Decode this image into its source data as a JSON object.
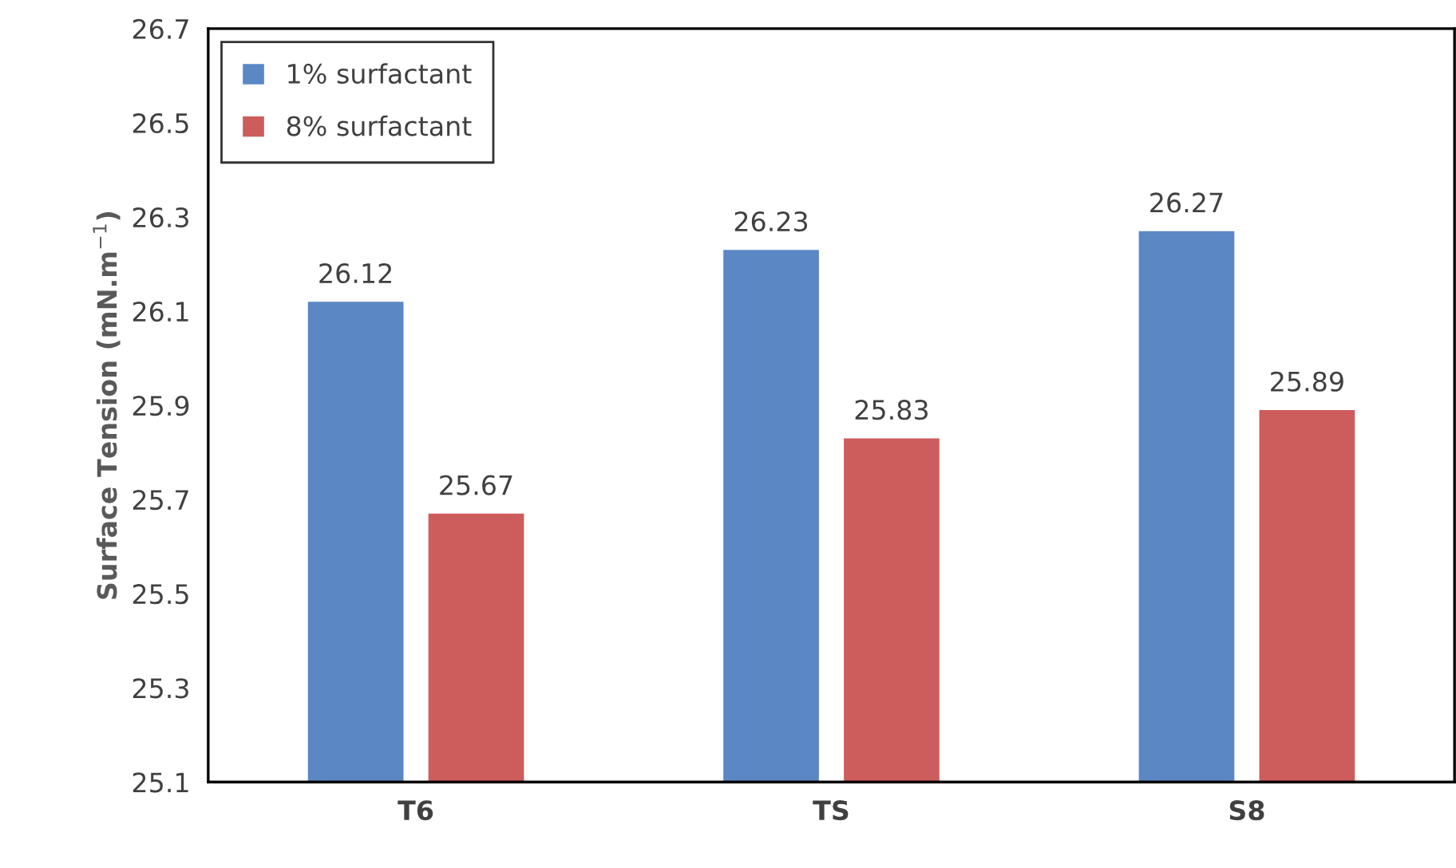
{
  "chart_data": {
    "type": "bar",
    "ylabel": "Surface Tension (mN.m$^{−1}$)",
    "categories": [
      "T6",
      "TS",
      "S8"
    ],
    "series": [
      {
        "name": "1% surfactant",
        "color": "#5b87c5",
        "values": [
          26.12,
          26.23,
          26.27
        ]
      },
      {
        "name": "8% surfactant",
        "color": "#cd5c5c",
        "values": [
          25.67,
          25.83,
          25.89
        ]
      }
    ],
    "ylim": [
      25.1,
      26.7
    ],
    "yticks": [
      25.1,
      25.3,
      25.5,
      25.7,
      25.9,
      26.1,
      26.3,
      26.5,
      26.7
    ],
    "data_labels": true,
    "grid": false,
    "legend": "top left"
  }
}
